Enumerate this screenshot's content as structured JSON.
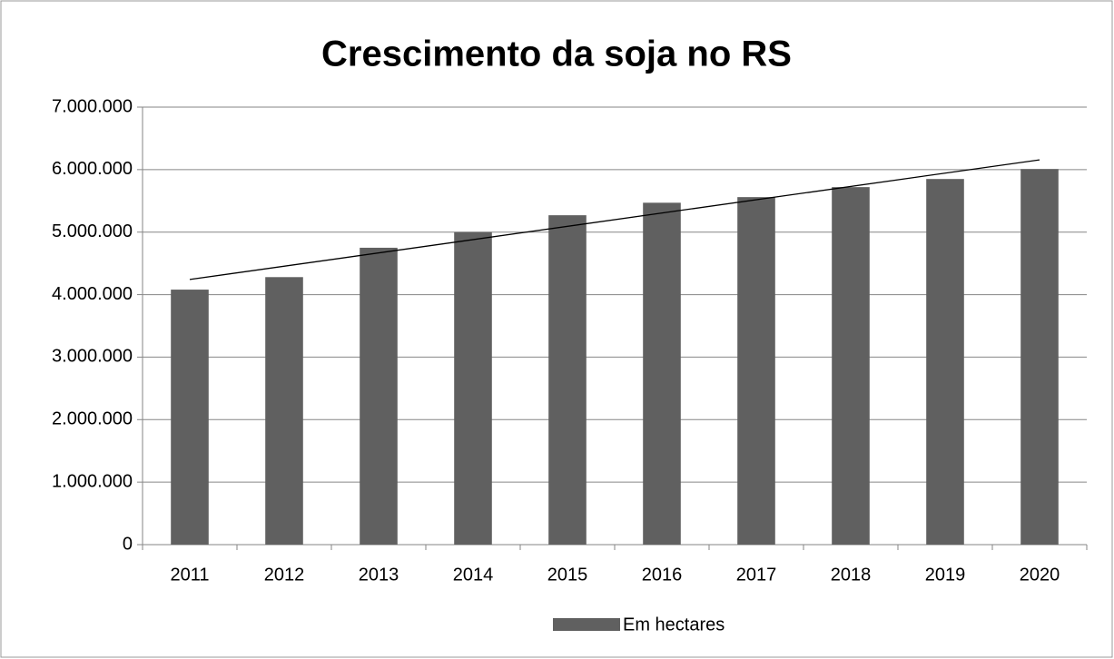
{
  "chart_data": {
    "type": "bar",
    "title": "Crescimento da soja no RS",
    "categories": [
      "2011",
      "2012",
      "2013",
      "2014",
      "2015",
      "2016",
      "2017",
      "2018",
      "2019",
      "2020"
    ],
    "series": [
      {
        "name": "Em hectares",
        "color": "#606060",
        "values": [
          4080000,
          4280000,
          4750000,
          5000000,
          5270000,
          5470000,
          5560000,
          5720000,
          5850000,
          6010000
        ]
      }
    ],
    "ylim": [
      0,
      7000000
    ],
    "yticks": [
      0,
      {
        "value": 1000000,
        "label": "1.000.000"
      },
      {
        "value": 2000000,
        "label": "2.000.000"
      },
      {
        "value": 3000000,
        "label": "3.000.000"
      },
      {
        "value": 4000000,
        "label": "4.000.000"
      },
      {
        "value": 5000000,
        "label": "5.000.000"
      },
      {
        "value": 6000000,
        "label": "6.000.000"
      },
      {
        "value": 7000000,
        "label": "7.000.000"
      }
    ],
    "grid": true,
    "trendline": "linear",
    "legend": "bottom"
  }
}
